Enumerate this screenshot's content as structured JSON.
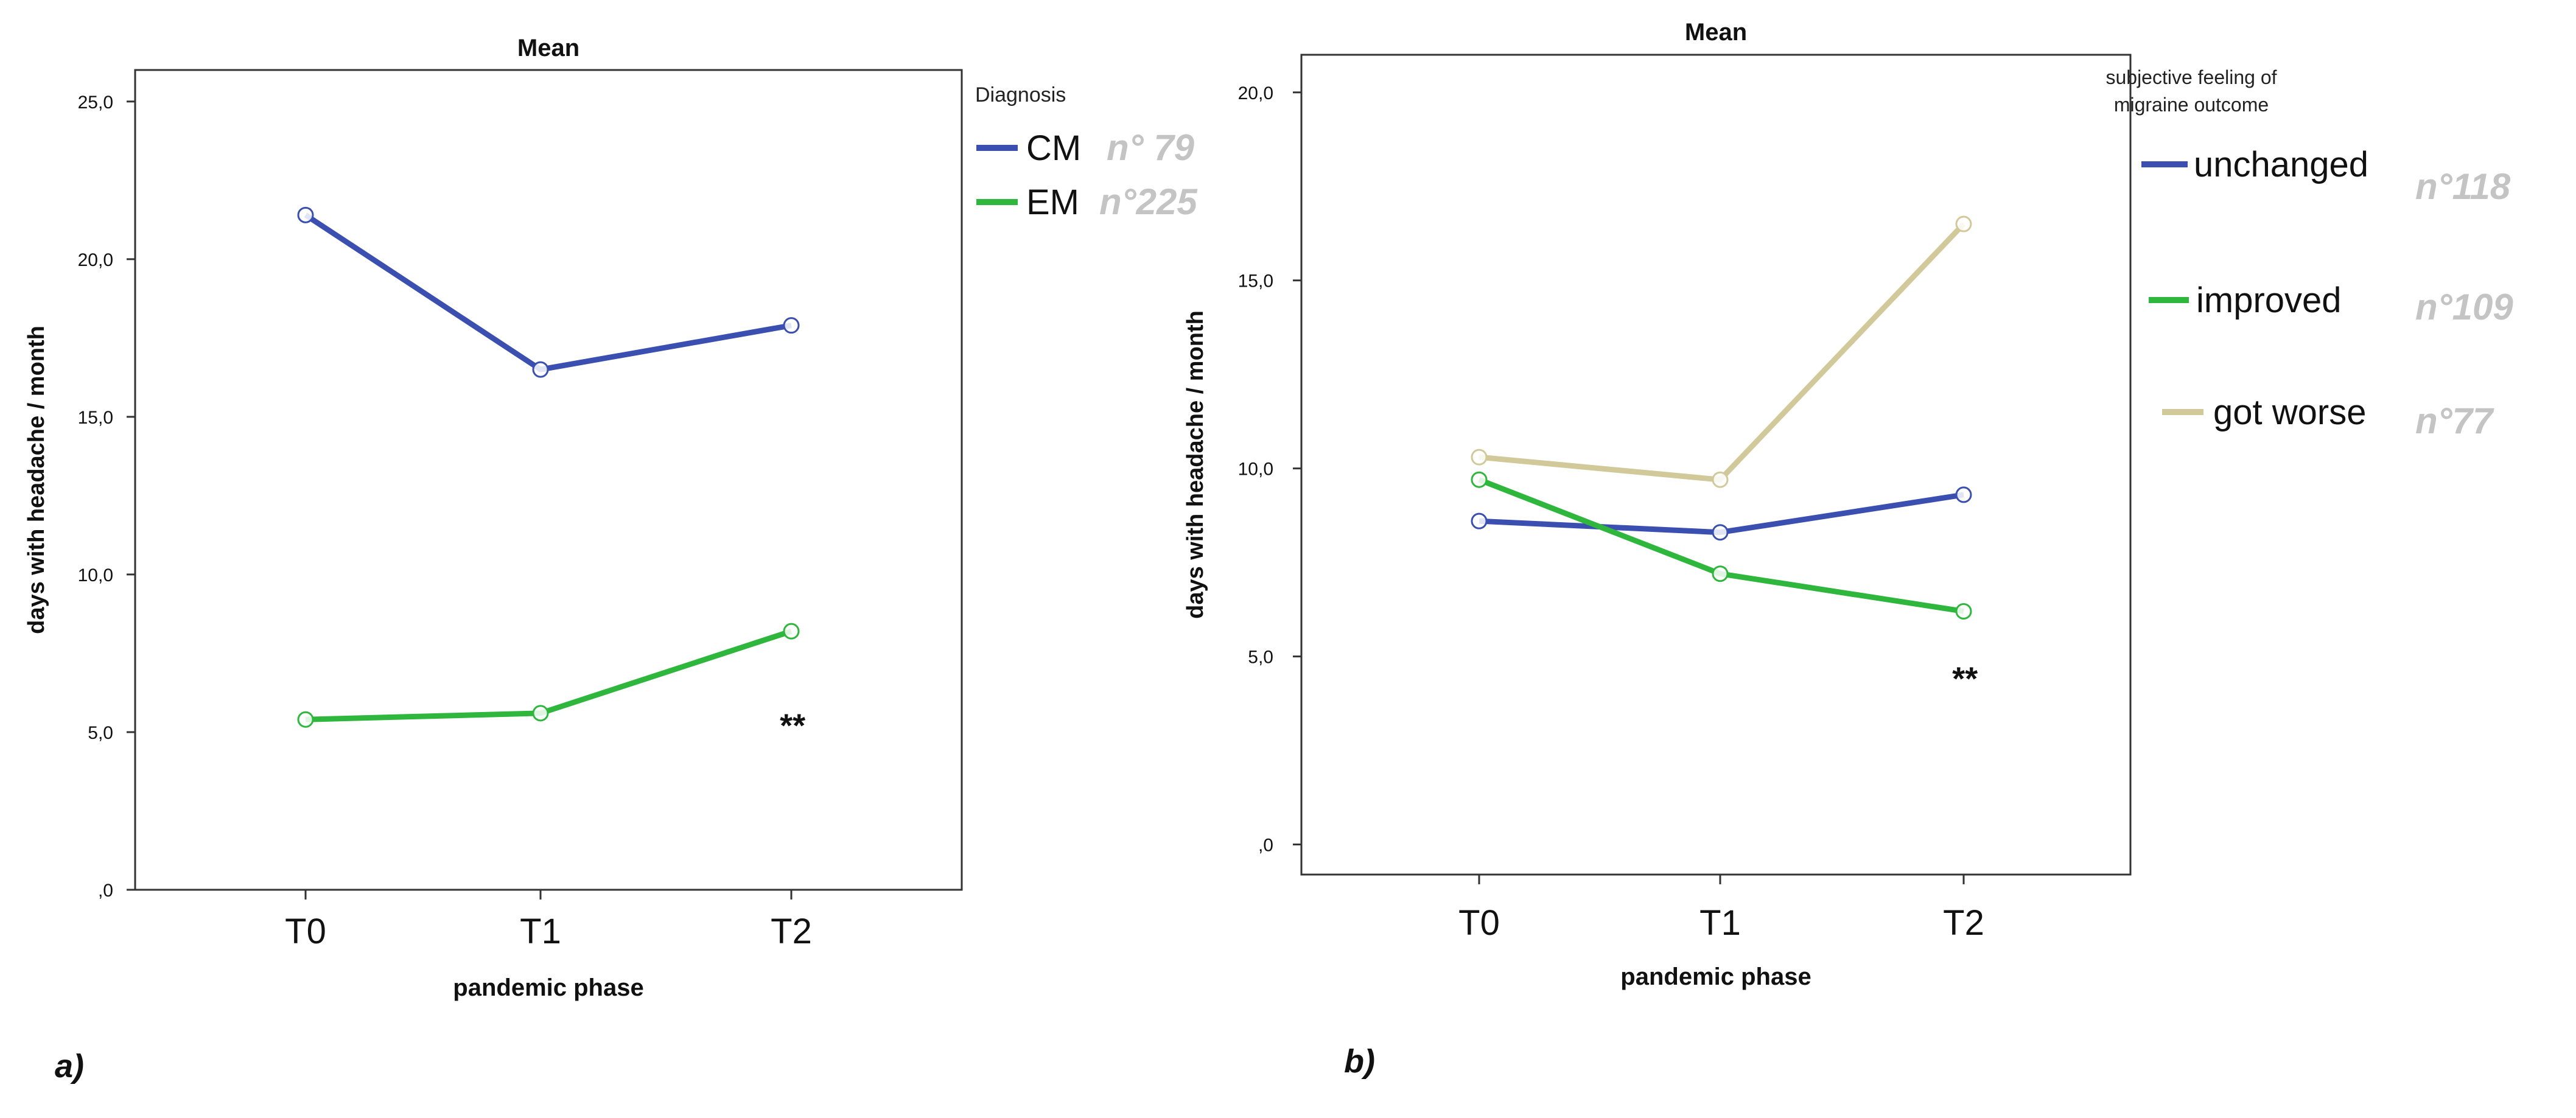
{
  "chart_data": [
    {
      "type": "line",
      "title": "Mean",
      "xlabel": "pandemic phase",
      "ylabel": "days with headache / month",
      "categories": [
        "T0",
        "T1",
        "T2"
      ],
      "ylim": [
        0,
        26
      ],
      "yticks": [
        0,
        5,
        10,
        15,
        20,
        25
      ],
      "ytick_labels": [
        ",0",
        "5,0",
        "10,0",
        "15,0",
        "20,0",
        "25,0"
      ],
      "legend_title": "Diagnosis",
      "legend_position": "right",
      "series": [
        {
          "name": "CM",
          "count_label": "n° 79",
          "color": "#3a4fb0",
          "values": [
            21.4,
            16.5,
            17.9
          ]
        },
        {
          "name": "EM",
          "count_label": "n°225",
          "color": "#2fb63c",
          "values": [
            5.4,
            5.6,
            8.2
          ]
        }
      ],
      "annotation": {
        "text": "**",
        "category": "T2",
        "value": 5.2
      },
      "panel_label": "a)"
    },
    {
      "type": "line",
      "title": "Mean",
      "xlabel": "pandemic phase",
      "ylabel": "days with headache / month",
      "categories": [
        "T0",
        "T1",
        "T2"
      ],
      "ylim": [
        -0.8,
        21
      ],
      "yticks": [
        0,
        5,
        10,
        15,
        20
      ],
      "ytick_labels": [
        ",0",
        "5,0",
        "10,0",
        "15,0",
        "20,0"
      ],
      "legend_title_lines": [
        "subjective feeling of",
        "migraine outcome"
      ],
      "legend_position": "right",
      "series": [
        {
          "name": "unchanged",
          "count_label": "n°118",
          "color": "#3a4fb0",
          "values": [
            8.6,
            8.3,
            9.3
          ]
        },
        {
          "name": "improved",
          "count_label": "n°109",
          "color": "#2fb63c",
          "values": [
            9.7,
            7.2,
            6.2
          ]
        },
        {
          "name": "got worse",
          "count_label": "n°77",
          "color": "#d2c99a",
          "values": [
            10.3,
            9.7,
            16.5
          ]
        }
      ],
      "annotation": {
        "text": "**",
        "category": "T2",
        "value": 4.4
      },
      "panel_label": "b)"
    }
  ]
}
